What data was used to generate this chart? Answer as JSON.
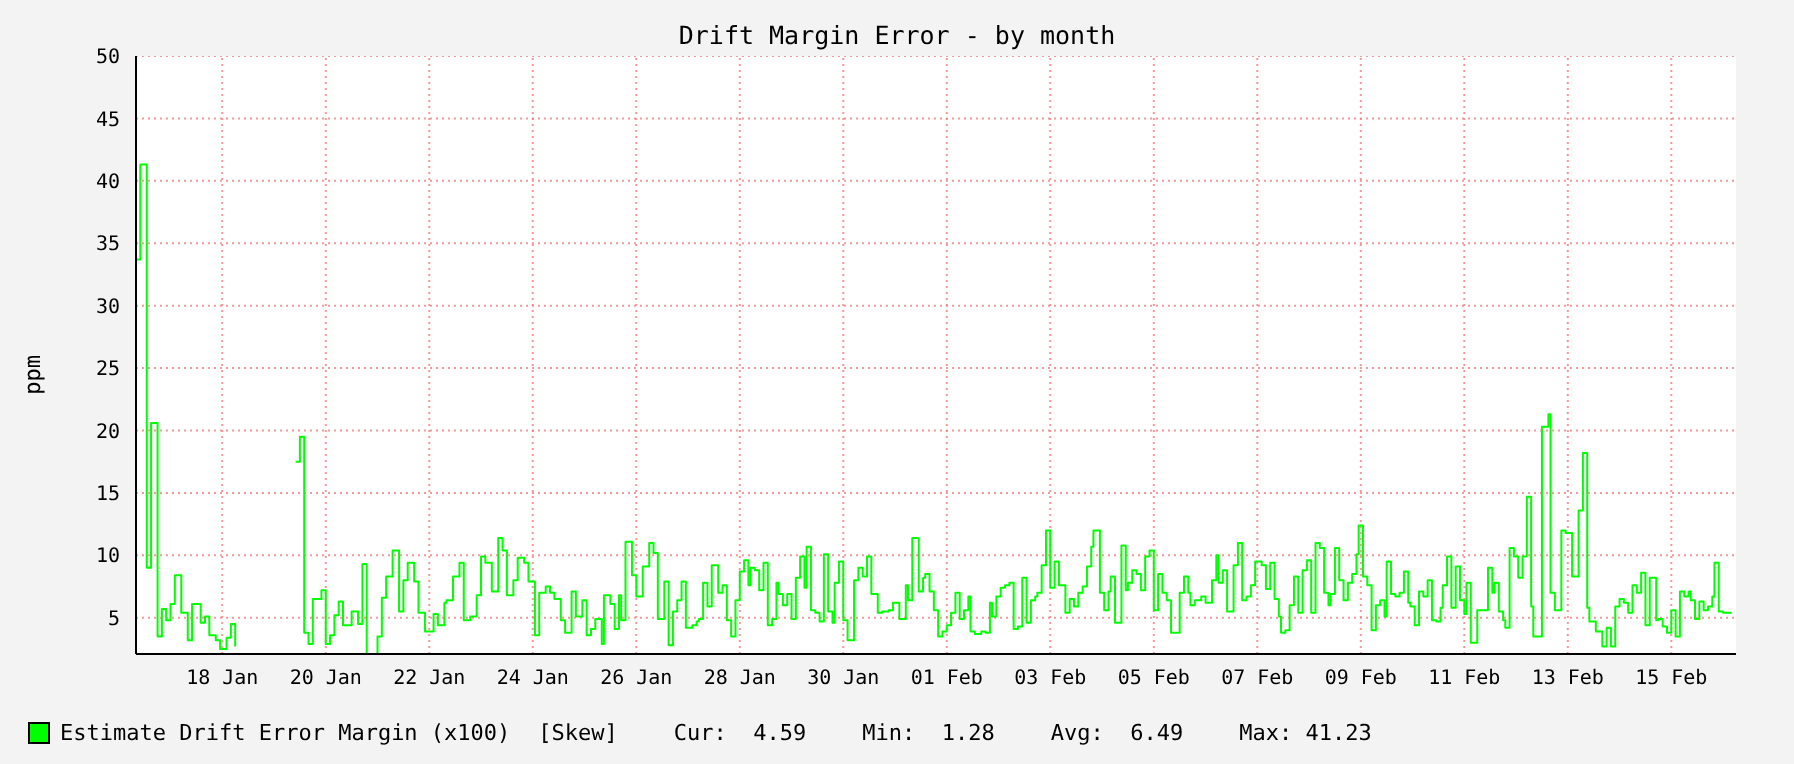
{
  "chart_data": {
    "type": "step",
    "title": "Drift Margin Error - by month",
    "ylabel": "ppm",
    "xlim": [
      "--01-16T20:00",
      "--02-16T18:00"
    ],
    "ylim": [
      2.1,
      50
    ],
    "yticks": [
      5,
      10,
      15,
      20,
      25,
      30,
      35,
      40,
      45,
      50
    ],
    "xticks": [
      {
        "value": "--01-18T12:00",
        "label": "18 Jan"
      },
      {
        "value": "--01-20T12:00",
        "label": "20 Jan"
      },
      {
        "value": "--01-22T12:00",
        "label": "22 Jan"
      },
      {
        "value": "--01-24T12:00",
        "label": "24 Jan"
      },
      {
        "value": "--01-26T12:00",
        "label": "26 Jan"
      },
      {
        "value": "--01-28T12:00",
        "label": "28 Jan"
      },
      {
        "value": "--01-30T12:00",
        "label": "30 Jan"
      },
      {
        "value": "--02-01T12:00",
        "label": "01 Feb"
      },
      {
        "value": "--02-03T12:00",
        "label": "03 Feb"
      },
      {
        "value": "--02-05T12:00",
        "label": "05 Feb"
      },
      {
        "value": "--02-07T12:00",
        "label": "07 Feb"
      },
      {
        "value": "--02-09T12:00",
        "label": "09 Feb"
      },
      {
        "value": "--02-11T12:00",
        "label": "11 Feb"
      },
      {
        "value": "--02-13T12:00",
        "label": "13 Feb"
      },
      {
        "value": "--02-15T12:00",
        "label": "15 Feb"
      }
    ],
    "grid": true,
    "legend": "bottom",
    "marker": "none",
    "line_style": "solid",
    "annotations": [
      "[Skew]",
      "Cur:  4.59",
      "Min:  1.28",
      "Avg:  6.49",
      "Max: 41.23"
    ],
    "series": [
      {
        "name": "Estimate Drift Error Margin (x100)",
        "color": "#00ff00",
        "x": [
          "--01-16T20:00",
          "--01-16T22:00",
          "--01-17T01:00",
          "--01-17T03:00",
          "--01-17T06:00",
          "--01-17T08:00",
          "--01-17T10:00",
          "--01-17T12:00",
          "--01-17T14:00",
          "--01-17T17:00",
          "--01-17T20:00",
          "--01-17T22:00",
          "--01-18T02:00",
          "--01-18T04:00",
          "--01-18T06:00",
          "--01-18T09:00",
          "--01-18T11:00",
          "--01-18T14:00",
          "--01-18T16:00",
          "--01-18T18:00",
          "--01-18T20:00",
          "--01-19T22:00",
          "--01-20T00:00",
          "--01-20T02:00",
          "--01-20T04:00",
          "--01-20T06:00",
          "--01-20T10:00",
          "--01-20T12:00",
          "--01-20T14:00",
          "--01-20T16:00",
          "--01-20T18:00",
          "--01-20T20:00",
          "--01-21T00:00",
          "--01-21T03:00",
          "--01-21T05:00",
          "--01-21T07:00",
          "--01-21T12:00",
          "--01-21T14:00",
          "--01-21T16:00",
          "--01-21T19:00",
          "--01-21T22:00",
          "--01-22T00:00",
          "--01-22T02:00",
          "--01-22T05:00",
          "--01-22T07:00",
          "--01-22T10:00",
          "--01-22T14:00",
          "--01-22T16:00",
          "--01-22T19:00",
          "--01-22T20:00",
          "--01-22T23:00",
          "--01-23T02:00",
          "--01-23T04:00",
          "--01-23T07:00",
          "--01-23T10:00",
          "--01-23T12:00",
          "--01-23T14:00",
          "--01-23T17:00",
          "--01-23T20:00",
          "--01-23T22:00",
          "--01-24T00:00",
          "--01-24T03:00",
          "--01-24T05:00",
          "--01-24T08:00",
          "--01-24T10:00",
          "--01-24T13:00",
          "--01-24T15:00",
          "--01-24T18:00",
          "--01-24T20:00",
          "--01-24T22:00",
          "--01-25T01:00",
          "--01-25T03:00",
          "--01-25T06:00",
          "--01-25T08:00",
          "--01-25T11:00",
          "--01-25T13:00",
          "--01-25T15:00",
          "--01-25T17:00",
          "--01-25T20:00",
          "--01-25T21:00",
          "--01-26T00:00",
          "--01-26T02:00",
          "--01-26T04:00",
          "--01-26T05:00",
          "--01-26T07:00",
          "--01-26T10:00",
          "--01-26T12:00",
          "--01-26T15:00",
          "--01-26T18:00",
          "--01-26T20:00",
          "--01-26T22:00",
          "--01-27T01:00",
          "--01-27T03:00",
          "--01-27T05:00",
          "--01-27T07:00",
          "--01-27T09:00",
          "--01-27T11:00",
          "--01-27T14:00",
          "--01-27T16:00",
          "--01-27T17:00",
          "--01-27T19:00",
          "--01-27T21:00",
          "--01-27T23:00",
          "--01-28T02:00",
          "--01-28T04:00",
          "--01-28T06:00",
          "--01-28T08:00",
          "--01-28T10:00",
          "--01-28T12:00",
          "--01-28T14:00",
          "--01-28T16:00",
          "--01-28T17:00",
          "--01-28T19:00",
          "--01-28T21:00",
          "--01-28T23:00",
          "--01-29T01:00",
          "--01-29T03:00",
          "--01-29T05:00",
          "--01-29T06:00",
          "--01-29T08:00",
          "--01-29T10:00",
          "--01-29T12:00",
          "--01-29T14:00",
          "--01-29T16:00",
          "--01-29T18:00",
          "--01-29T19:00",
          "--01-29T21:00",
          "--01-29T23:00",
          "--01-30T01:00",
          "--01-30T03:00",
          "--01-30T05:00",
          "--01-30T07:00",
          "--01-30T08:00",
          "--01-30T10:00",
          "--01-30T12:00",
          "--01-30T14:00",
          "--01-30T17:00",
          "--01-30T19:00",
          "--01-30T21:00",
          "--01-30T23:00",
          "--01-31T01:00",
          "--01-31T04:00",
          "--01-31T06:00",
          "--01-31T09:00",
          "--01-31T11:00",
          "--01-31T14:00",
          "--01-31T17:00",
          "--01-31T18:00",
          "--01-31T20:00",
          "--01-31T23:00",
          "--02-01T01:00",
          "--02-01T02:00",
          "--02-01T04:00",
          "--02-01T06:00",
          "--02-01T08:00",
          "--02-01T10:00",
          "--02-01T12:00",
          "--02-01T14:00",
          "--02-01T16:00",
          "--02-01T18:00",
          "--02-01T20:00",
          "--02-01T22:00",
          "--02-01T23:00",
          "--02-02T01:00",
          "--02-02T04:00",
          "--02-02T06:00",
          "--02-02T08:00",
          "--02-02T09:00",
          "--02-02T11:00",
          "--02-02T13:00",
          "--02-02T15:00",
          "--02-02T17:00",
          "--02-02T19:00",
          "--02-02T21:00",
          "--02-02T23:00",
          "--02-03T01:00",
          "--02-03T03:00",
          "--02-03T05:00",
          "--02-03T06:00",
          "--02-03T08:00",
          "--02-03T10:00",
          "--02-03T12:00",
          "--02-03T14:00",
          "--02-03T16:00",
          "--02-03T19:00",
          "--02-03T21:00",
          "--02-03T23:00",
          "--02-04T01:00",
          "--02-04T03:00",
          "--02-04T05:00",
          "--02-04T07:00",
          "--02-04T08:00",
          "--02-04T11:00",
          "--02-04T13:00",
          "--02-04T15:00",
          "--02-04T16:00",
          "--02-04T18:00",
          "--02-04T21:00",
          "--02-04T23:00",
          "--02-05T00:00",
          "--02-05T02:00",
          "--02-05T04:00",
          "--02-05T06:00",
          "--02-05T08:00",
          "--02-05T10:00",
          "--02-05T12:00",
          "--02-05T14:00",
          "--02-05T16:00",
          "--02-05T18:00",
          "--02-05T20:00",
          "--02-06T00:00",
          "--02-06T02:00",
          "--02-06T04:00",
          "--02-06T05:00",
          "--02-06T07:00",
          "--02-06T10:00",
          "--02-06T12:00",
          "--02-06T15:00",
          "--02-06T17:00",
          "--02-06T18:00",
          "--02-06T20:00",
          "--02-06T22:00",
          "--02-07T01:00",
          "--02-07T03:00",
          "--02-07T05:00",
          "--02-07T07:00",
          "--02-07T09:00",
          "--02-07T11:00",
          "--02-07T14:00",
          "--02-07T16:00",
          "--02-07T18:00",
          "--02-07T20:00",
          "--02-07T22:00",
          "--02-07T23:00",
          "--02-08T01:00",
          "--02-08T03:00",
          "--02-08T05:00",
          "--02-08T07:00",
          "--02-08T09:00",
          "--02-08T11:00",
          "--02-08T13:00",
          "--02-08T15:00",
          "--02-08T17:00",
          "--02-08T19:00",
          "--02-08T21:00",
          "--02-08T22:00",
          "--02-09T00:00",
          "--02-09T02:00",
          "--02-09T04:00",
          "--02-09T06:00",
          "--02-09T08:00",
          "--02-09T10:00",
          "--02-09T11:00",
          "--02-09T13:00",
          "--02-09T15:00",
          "--02-09T17:00",
          "--02-09T19:00",
          "--02-09T21:00",
          "--02-09T23:00",
          "--02-10T00:00",
          "--02-10T02:00",
          "--02-10T04:00",
          "--02-10T06:00",
          "--02-10T08:00",
          "--02-10T10:00",
          "--02-10T11:00",
          "--02-10T13:00",
          "--02-10T15:00",
          "--02-10T17:00",
          "--02-10T19:00",
          "--02-10T21:00",
          "--02-10T23:00",
          "--02-11T01:00",
          "--02-11T02:00",
          "--02-11T04:00",
          "--02-11T06:00",
          "--02-11T08:00",
          "--02-11T10:00",
          "--02-11T12:00",
          "--02-11T13:00",
          "--02-11T15:00",
          "--02-11T18:00",
          "--02-11T23:00",
          "--02-12T01:00",
          "--02-12T02:00",
          "--02-12T04:00",
          "--02-12T06:00",
          "--02-12T07:00",
          "--02-12T09:00",
          "--02-12T11:00",
          "--02-12T13:00",
          "--02-12T15:00",
          "--02-12T17:00",
          "--02-12T19:00",
          "--02-12T20:00",
          "--02-13T00:00",
          "--02-13T03:00",
          "--02-13T04:00",
          "--02-13T06:00",
          "--02-13T09:00",
          "--02-13T11:00",
          "--02-13T14:00",
          "--02-13T17:00",
          "--02-13T19:00",
          "--02-13T21:00",
          "--02-13T22:00",
          "--02-14T01:00",
          "--02-14T04:00",
          "--02-14T06:00",
          "--02-14T08:00",
          "--02-14T10:00",
          "--02-14T12:00",
          "--02-14T14:00",
          "--02-14T16:00",
          "--02-14T18:00",
          "--02-14T20:00",
          "--02-14T22:00",
          "--02-15T00:00",
          "--02-15T02:00",
          "--02-15T05:00",
          "--02-15T06:00",
          "--02-15T08:00",
          "--02-15T10:00",
          "--02-15T12:00",
          "--02-15T14:00",
          "--02-15T16:00",
          "--02-15T18:00",
          "--02-15T20:00",
          "--02-15T21:00",
          "--02-15T23:00",
          "--02-16T01:00",
          "--02-16T03:00",
          "--02-16T05:00",
          "--02-16T07:00",
          "--02-16T08:00",
          "--02-16T10:00",
          "--02-16T12:00",
          "--02-16T16:00"
        ],
        "values": [
          33.7,
          41.3,
          9.0,
          20.6,
          3.5,
          5.7,
          4.8,
          6.1,
          8.4,
          5.4,
          3.2,
          6.1,
          4.6,
          5.1,
          3.6,
          3.2,
          2.5,
          3.4,
          4.5,
          2.7,
          null,
          17.5,
          19.5,
          3.8,
          2.9,
          6.5,
          7.2,
          2.9,
          3.6,
          5.2,
          6.3,
          4.4,
          5.5,
          4.5,
          9.3,
          2.1,
          3.5,
          6.6,
          8.3,
          10.4,
          5.5,
          8.0,
          9.4,
          7.9,
          5.4,
          3.9,
          5.3,
          4.4,
          6.2,
          6.4,
          8.3,
          9.4,
          4.8,
          5.1,
          6.8,
          9.9,
          9.4,
          7.1,
          11.4,
          10.4,
          6.8,
          8.0,
          9.8,
          9.4,
          7.9,
          3.6,
          7.0,
          7.5,
          7.0,
          6.5,
          4.8,
          3.8,
          7.1,
          5.1,
          6.4,
          3.6,
          4.1,
          4.9,
          2.9,
          6.8,
          6.1,
          4.1,
          6.8,
          4.8,
          11.1,
          8.4,
          6.7,
          9.1,
          11.0,
          10.2,
          4.9,
          7.9,
          2.8,
          5.5,
          6.4,
          7.9,
          4.2,
          4.4,
          4.7,
          4.9,
          7.8,
          5.9,
          9.2,
          7.0,
          7.6,
          4.8,
          3.5,
          6.4,
          8.7,
          9.6,
          7.6,
          9.0,
          8.8,
          7.2,
          9.4,
          4.4,
          4.9,
          7.8,
          6.9,
          6.0,
          6.9,
          4.9,
          8.2,
          9.9,
          7.4,
          10.7,
          5.6,
          5.4,
          4.7,
          10.1,
          5.5,
          4.6,
          7.8,
          9.5,
          4.8,
          3.2,
          8.0,
          9.0,
          8.3,
          9.9,
          6.9,
          5.4,
          5.5,
          5.6,
          6.2,
          4.9,
          7.6,
          6.4,
          11.4,
          7.1,
          8.2,
          8.5,
          7.1,
          5.6,
          3.5,
          3.9,
          4.4,
          5.4,
          7.0,
          4.9,
          5.6,
          6.7,
          3.9,
          3.7,
          3.9,
          3.8,
          6.2,
          5.1,
          6.7,
          7.4,
          7.6,
          7.8,
          4.1,
          4.3,
          8.2,
          4.6,
          6.4,
          6.7,
          7.0,
          9.2,
          12.0,
          7.4,
          9.5,
          7.6,
          5.4,
          6.5,
          5.9,
          7.0,
          7.5,
          9.1,
          10.7,
          12.0,
          7.0,
          5.6,
          7.1,
          8.3,
          4.6,
          10.8,
          7.2,
          7.8,
          8.8,
          8.5,
          7.2,
          9.9,
          10.4,
          5.6,
          8.5,
          7.0,
          6.4,
          3.8,
          7.0,
          8.3,
          7.0,
          6.0,
          6.4,
          6.7,
          6.2,
          8.0,
          10.0,
          7.8,
          8.8,
          5.5,
          9.2,
          11.0,
          6.4,
          6.7,
          7.6,
          9.5,
          9.2,
          7.3,
          9.4,
          6.5,
          5.1,
          3.8,
          4.0,
          6.0,
          8.3,
          5.4,
          8.8,
          9.6,
          5.4,
          11.0,
          10.6,
          7.0,
          6.0,
          6.9,
          10.6,
          8.0,
          6.4,
          7.8,
          8.5,
          10.1,
          12.4,
          8.3,
          7.6,
          4.0,
          6.0,
          6.4,
          5.1,
          9.5,
          6.9,
          6.7,
          7.0,
          8.7,
          6.2,
          5.9,
          4.4,
          7.1,
          6.7,
          8.0,
          4.8,
          4.7,
          5.8,
          7.6,
          9.9,
          5.8,
          9.1,
          6.4,
          5.3,
          7.8,
          3.0,
          5.6,
          9.0,
          7.0,
          7.8,
          5.5,
          4.8,
          4.2,
          10.6,
          9.9,
          8.2,
          9.9,
          14.7,
          5.9,
          3.5,
          20.3,
          21.3,
          7.0,
          5.6,
          12.0,
          11.8,
          8.3,
          13.6,
          18.2,
          5.8,
          4.7,
          3.9,
          2.7,
          4.2,
          2.7,
          5.9,
          6.5,
          6.2,
          5.4,
          7.6,
          7.0,
          8.6,
          4.4,
          8.2,
          4.8,
          4.9,
          4.3,
          3.8,
          5.6,
          3.5,
          7.1,
          6.7,
          7.1,
          6.4,
          4.9,
          6.3,
          5.6,
          5.9,
          6.7,
          9.4,
          5.5,
          5.4,
          5.4
        ]
      }
    ]
  }
}
